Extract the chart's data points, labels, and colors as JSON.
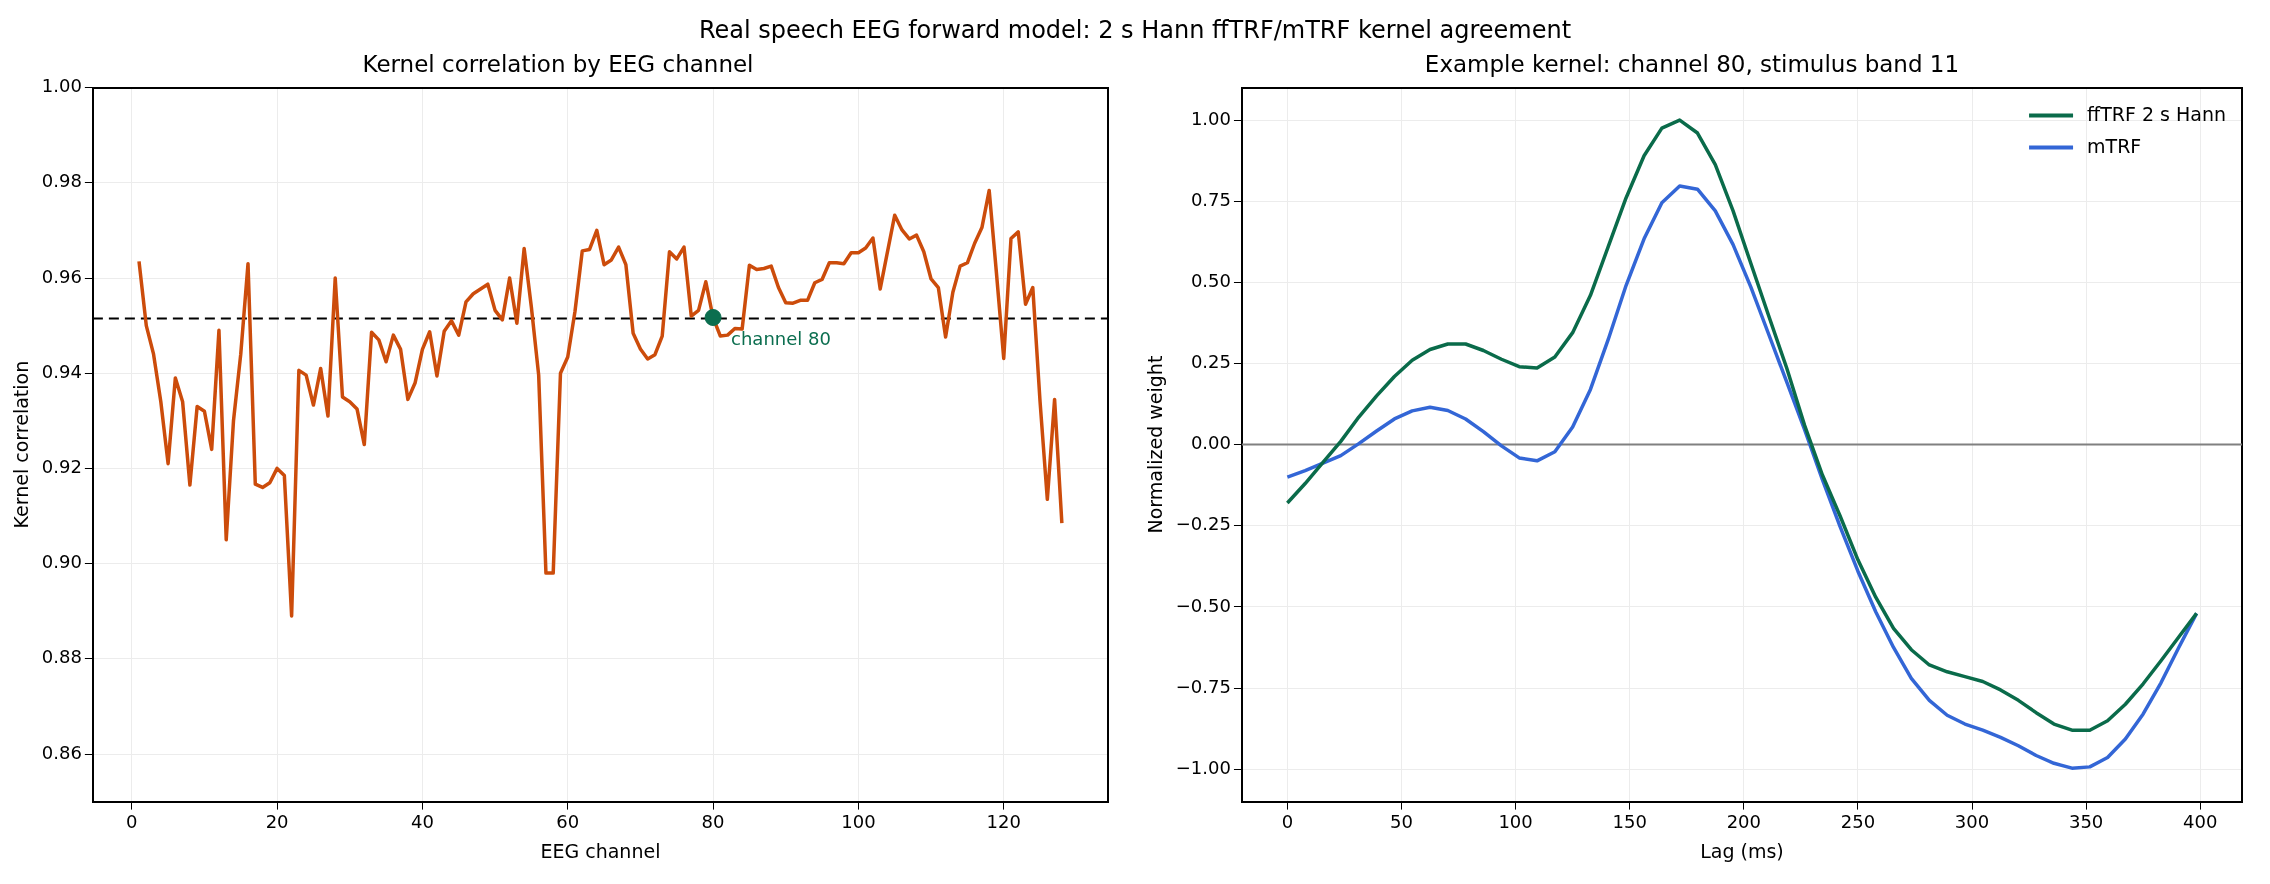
{
  "chart_data": [
    {
      "type": "line",
      "title": "Kernel correlation by EEG channel",
      "xlabel": "EEG channel",
      "ylabel": "Kernel correlation",
      "annotations": [
        "Real speech EEG forward model: 2 s Hann ffTRF/mTRF kernel agreement",
        {
          "text": "channel 80",
          "x": 80,
          "y": 0.9517
        }
      ],
      "x": [
        1,
        2,
        3,
        4,
        5,
        6,
        7,
        8,
        9,
        10,
        11,
        12,
        13,
        14,
        15,
        16,
        17,
        18,
        19,
        20,
        21,
        22,
        23,
        24,
        25,
        26,
        27,
        28,
        29,
        30,
        31,
        32,
        33,
        34,
        35,
        36,
        37,
        38,
        39,
        40,
        41,
        42,
        43,
        44,
        45,
        46,
        47,
        48,
        49,
        50,
        51,
        52,
        53,
        54,
        55,
        56,
        57,
        58,
        59,
        60,
        61,
        62,
        63,
        64,
        65,
        66,
        67,
        68,
        69,
        70,
        71,
        72,
        73,
        74,
        75,
        76,
        77,
        78,
        79,
        80,
        81,
        82,
        83,
        84,
        85,
        86,
        87,
        88,
        89,
        90,
        91,
        92,
        93,
        94,
        95,
        96,
        97,
        98,
        99,
        100,
        101,
        102,
        103,
        104,
        105,
        106,
        107,
        108,
        109,
        110,
        111,
        112,
        113,
        114,
        115,
        116,
        117,
        118,
        119,
        120,
        121,
        122,
        123,
        124,
        125,
        126,
        127,
        128
      ],
      "series": [
        {
          "color": "#cc4c0b",
          "marker": "none",
          "values": [
            0.9635,
            0.95,
            0.944,
            0.934,
            0.921,
            0.939,
            0.934,
            0.9165,
            0.933,
            0.932,
            0.924,
            0.949,
            0.905,
            0.93,
            0.944,
            0.963,
            0.9167,
            0.916,
            0.917,
            0.92,
            0.9185,
            0.889,
            0.9406,
            0.9396,
            0.9333,
            0.941,
            0.931,
            0.96,
            0.935,
            0.934,
            0.9325,
            0.925,
            0.9486,
            0.947,
            0.9424,
            0.948,
            0.945,
            0.9345,
            0.938,
            0.945,
            0.9487,
            0.9394,
            0.9488,
            0.951,
            0.948,
            0.955,
            0.9567,
            0.9577,
            0.9587,
            0.9532,
            0.9512,
            0.96,
            0.9505,
            0.9662,
            0.9538,
            0.9396,
            0.898,
            0.898,
            0.94,
            0.9434,
            0.953,
            0.9657,
            0.966,
            0.97,
            0.9628,
            0.9638,
            0.9665,
            0.9628,
            0.9484,
            0.9451,
            0.943,
            0.9439,
            0.9478,
            0.9655,
            0.964,
            0.9665,
            0.952,
            0.9532,
            0.9592,
            0.9517,
            0.9478,
            0.948,
            0.9494,
            0.9493,
            0.9627,
            0.9618,
            0.962,
            0.9625,
            0.958,
            0.9548,
            0.9547,
            0.9553,
            0.9553,
            0.959,
            0.9597,
            0.9632,
            0.9632,
            0.963,
            0.9653,
            0.9653,
            0.9663,
            0.9684,
            0.9577,
            0.9655,
            0.9732,
            0.9701,
            0.9682,
            0.969,
            0.9655,
            0.9598,
            0.958,
            0.9476,
            0.957,
            0.9625,
            0.9632,
            0.9673,
            0.9706,
            0.9784,
            0.961,
            0.9431,
            0.9683,
            0.9697,
            0.9545,
            0.958,
            0.934,
            0.9135,
            0.9345,
            0.9085
          ]
        },
        {
          "type": "scatter",
          "color": "#0b6e4f",
          "marker": "circle",
          "x": [
            80
          ],
          "values": [
            0.9517
          ]
        }
      ],
      "xlim": [
        -5.35,
        134.35
      ],
      "xticks": [
        0,
        20,
        40,
        60,
        80,
        100,
        120
      ],
      "ylim": [
        0.85,
        1.0
      ],
      "yticks": [
        {
          "value": 0.86,
          "label": "0.86"
        },
        {
          "value": 0.88,
          "label": "0.88"
        },
        {
          "value": 0.9,
          "label": "0.90"
        },
        {
          "value": 0.92,
          "label": "0.92"
        },
        {
          "value": 0.94,
          "label": "0.94"
        },
        {
          "value": 0.96,
          "label": "0.96"
        },
        {
          "value": 0.98,
          "label": "0.98"
        },
        {
          "value": 1.0,
          "label": "1.00"
        }
      ],
      "ref_lines": [
        {
          "axis": "y",
          "value": 0.9515,
          "color": "#000000",
          "line_style": "dashed"
        }
      ],
      "grid": true,
      "legend": false
    },
    {
      "type": "line",
      "title": "Example kernel: channel 80, stimulus band 11",
      "xlabel": "Lag (ms)",
      "ylabel": "Normalized weight",
      "x": [
        0,
        7.8,
        15.6,
        23.4,
        31.3,
        39.1,
        46.9,
        54.7,
        62.5,
        70.3,
        78.1,
        85.9,
        93.8,
        101.6,
        109.4,
        117.2,
        125,
        132.8,
        140.6,
        148.4,
        156.3,
        164.1,
        171.9,
        179.7,
        187.5,
        195.3,
        203.1,
        210.9,
        218.8,
        226.6,
        234.4,
        242.2,
        250,
        257.8,
        265.6,
        273.4,
        281.3,
        289.1,
        296.9,
        304.7,
        312.5,
        320.3,
        328.1,
        335.9,
        343.8,
        351.6,
        359.4,
        367.2,
        375,
        382.8,
        390.6,
        398.4
      ],
      "series": [
        {
          "name": "ffTRF 2 s Hann",
          "color": "#0a6b4a",
          "values": [
            -0.18,
            -0.12,
            -0.055,
            0.01,
            0.085,
            0.15,
            0.21,
            0.26,
            0.293,
            0.31,
            0.31,
            0.29,
            0.263,
            0.24,
            0.236,
            0.27,
            0.345,
            0.46,
            0.61,
            0.76,
            0.89,
            0.975,
            1.0,
            0.96,
            0.863,
            0.72,
            0.558,
            0.397,
            0.236,
            0.06,
            -0.093,
            -0.22,
            -0.355,
            -0.47,
            -0.566,
            -0.632,
            -0.679,
            -0.7,
            -0.715,
            -0.73,
            -0.756,
            -0.788,
            -0.826,
            -0.861,
            -0.88,
            -0.88,
            -0.851,
            -0.8,
            -0.737,
            -0.666,
            -0.593,
            -0.52
          ]
        },
        {
          "name": "mTRF",
          "color": "#3366d6",
          "values": [
            -0.1,
            -0.08,
            -0.057,
            -0.034,
            0.003,
            0.042,
            0.079,
            0.104,
            0.115,
            0.105,
            0.079,
            0.04,
            -0.004,
            -0.041,
            -0.05,
            -0.022,
            0.054,
            0.17,
            0.324,
            0.49,
            0.634,
            0.745,
            0.797,
            0.787,
            0.72,
            0.616,
            0.485,
            0.34,
            0.193,
            0.047,
            -0.107,
            -0.253,
            -0.39,
            -0.515,
            -0.625,
            -0.72,
            -0.788,
            -0.834,
            -0.861,
            -0.88,
            -0.902,
            -0.928,
            -0.958,
            -0.982,
            -0.997,
            -0.993,
            -0.964,
            -0.907,
            -0.83,
            -0.734,
            -0.625,
            -0.52
          ]
        }
      ],
      "xlim": [
        -19.9,
        418.3
      ],
      "xticks": [
        0,
        50,
        100,
        150,
        200,
        250,
        300,
        350,
        400
      ],
      "ylim": [
        -1.1,
        1.1
      ],
      "yticks": [
        {
          "value": -1,
          "label": "−1.00"
        },
        {
          "value": -0.75,
          "label": "−0.75"
        },
        {
          "value": -0.5,
          "label": "−0.50"
        },
        {
          "value": -0.25,
          "label": "−0.25"
        },
        {
          "value": 0,
          "label": "0.00"
        },
        {
          "value": 0.25,
          "label": "0.25"
        },
        {
          "value": 0.5,
          "label": "0.50"
        },
        {
          "value": 0.75,
          "label": "0.75"
        },
        {
          "value": 1,
          "label": "1.00"
        }
      ],
      "ref_lines": [
        {
          "axis": "y",
          "value": 0,
          "color": "#808080",
          "line_style": "solid"
        }
      ],
      "grid": true,
      "legend": "top right",
      "marker": "none",
      "line_style": "solid"
    }
  ]
}
